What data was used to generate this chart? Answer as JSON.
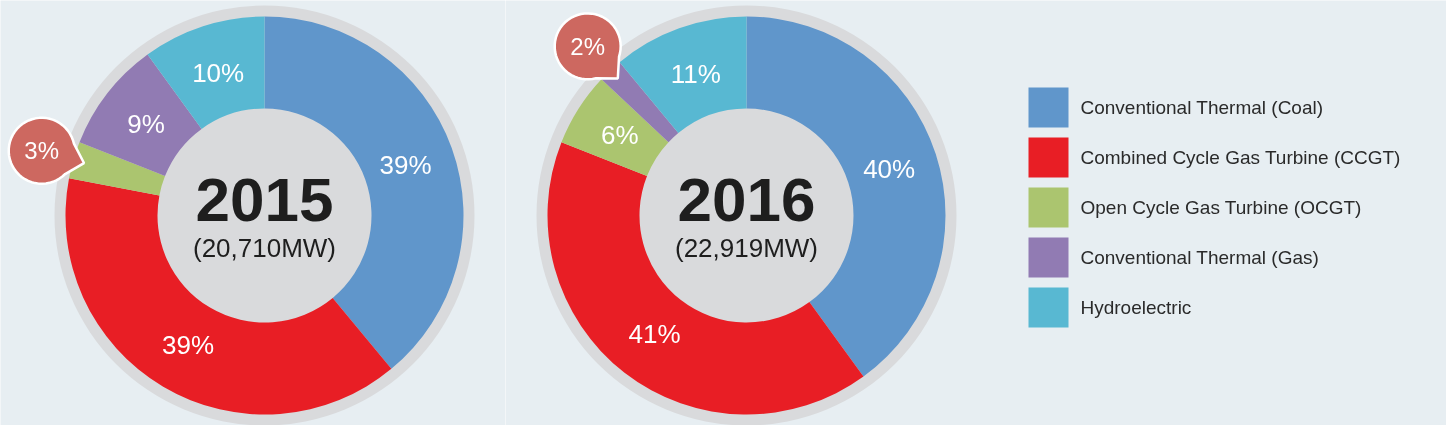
{
  "chart_data": [
    {
      "type": "donut",
      "title": "2015",
      "subtitle": "(20,710MW)",
      "categories": [
        null,
        null,
        null,
        null,
        null
      ],
      "values": [
        39,
        39,
        3,
        9,
        10
      ],
      "value_labels": [
        "39%",
        "39%",
        "3%",
        "9%",
        "10%"
      ],
      "colors": [
        "#6096cb",
        "#e81e25",
        "#abc56f",
        "#917bb3",
        "#58b8d2"
      ]
    },
    {
      "type": "donut",
      "title": "2016",
      "subtitle": "(22,919MW)",
      "categories": [
        "Conventional Thermal (Coal)",
        "Combined Cycle Gas Turbine (CCGT)",
        "Open Cycle Gas Turbine (OCGT)",
        "Conventional Thermal (Gas)",
        "Hydroelectric"
      ],
      "values": [
        40,
        41,
        6,
        2,
        11
      ],
      "value_labels": [
        "40%",
        "41%",
        "6%",
        "2%",
        "11%"
      ],
      "colors": [
        "#6096cb",
        "#e81e25",
        "#abc56f",
        "#917bb3",
        "#58b8d2"
      ],
      "legend": "right"
    }
  ]
}
